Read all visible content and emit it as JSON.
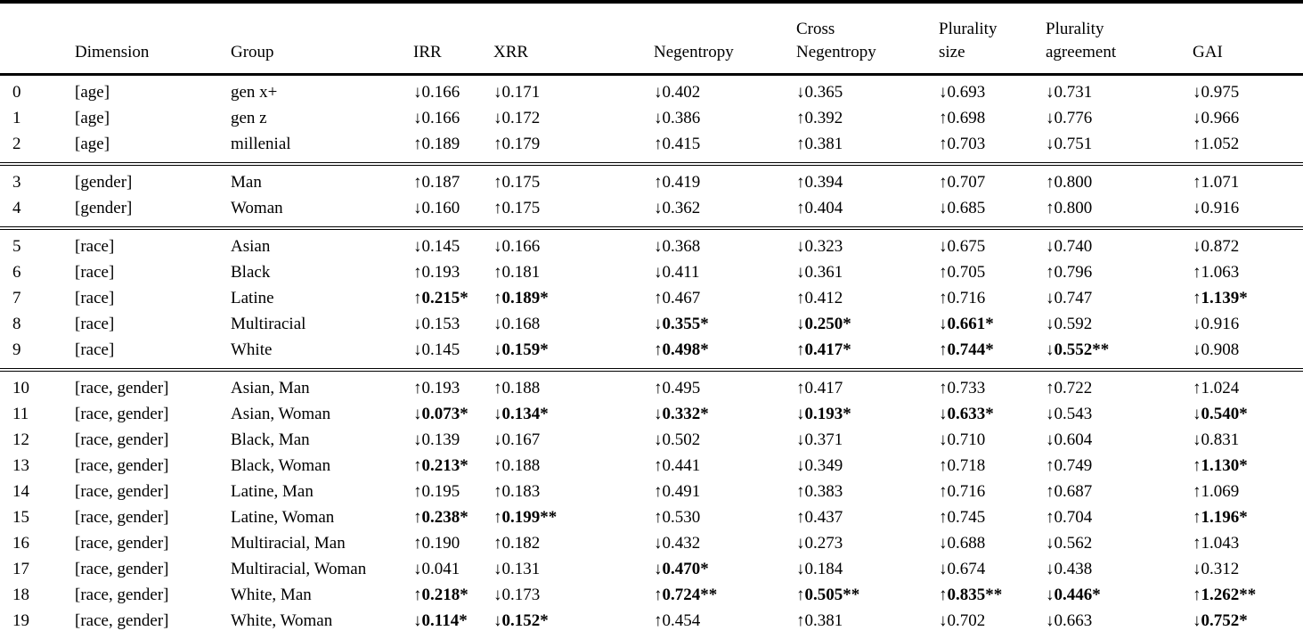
{
  "table": {
    "columns": [
      {
        "key": "index",
        "lines": [
          ""
        ]
      },
      {
        "key": "dimension",
        "lines": [
          "Dimension"
        ]
      },
      {
        "key": "group",
        "lines": [
          "Group"
        ]
      },
      {
        "key": "irr",
        "lines": [
          "IRR"
        ]
      },
      {
        "key": "xrr",
        "lines": [
          "XRR"
        ]
      },
      {
        "key": "negentropy",
        "lines": [
          "Negentropy"
        ]
      },
      {
        "key": "cross-negentropy",
        "lines": [
          "Cross",
          "Negentropy"
        ]
      },
      {
        "key": "plurality-size",
        "lines": [
          "Plurality",
          "size"
        ]
      },
      {
        "key": "plurality-agreement",
        "lines": [
          "Plurality",
          "agreement"
        ]
      },
      {
        "key": "gai",
        "lines": [
          "GAI"
        ]
      }
    ],
    "text_color": "#000000",
    "background_color": "#ffffff",
    "blocks": [
      {
        "rows": [
          {
            "idx": "0",
            "dimension": "[age]",
            "group": "gen x+",
            "metrics": [
              {
                "d": "↓",
                "v": "0.166"
              },
              {
                "d": "↓",
                "v": "0.171"
              },
              {
                "d": "↓",
                "v": "0.402"
              },
              {
                "d": "↓",
                "v": "0.365"
              },
              {
                "d": "↓",
                "v": "0.693"
              },
              {
                "d": "↓",
                "v": "0.731"
              },
              {
                "d": "↓",
                "v": "0.975"
              }
            ]
          },
          {
            "idx": "1",
            "dimension": "[age]",
            "group": "gen z",
            "metrics": [
              {
                "d": "↓",
                "v": "0.166"
              },
              {
                "d": "↓",
                "v": "0.172"
              },
              {
                "d": "↓",
                "v": "0.386"
              },
              {
                "d": "↑",
                "v": "0.392"
              },
              {
                "d": "↑",
                "v": "0.698"
              },
              {
                "d": "↓",
                "v": "0.776"
              },
              {
                "d": "↓",
                "v": "0.966"
              }
            ]
          },
          {
            "idx": "2",
            "dimension": "[age]",
            "group": "millenial",
            "metrics": [
              {
                "d": "↑",
                "v": "0.189"
              },
              {
                "d": "↑",
                "v": "0.179"
              },
              {
                "d": "↑",
                "v": "0.415"
              },
              {
                "d": "↑",
                "v": "0.381"
              },
              {
                "d": "↑",
                "v": "0.703"
              },
              {
                "d": "↓",
                "v": "0.751"
              },
              {
                "d": "↑",
                "v": "1.052"
              }
            ]
          }
        ]
      },
      {
        "rows": [
          {
            "idx": "3",
            "dimension": "[gender]",
            "group": "Man",
            "metrics": [
              {
                "d": "↑",
                "v": "0.187"
              },
              {
                "d": "↑",
                "v": "0.175"
              },
              {
                "d": "↑",
                "v": "0.419"
              },
              {
                "d": "↑",
                "v": "0.394"
              },
              {
                "d": "↑",
                "v": "0.707"
              },
              {
                "d": "↑",
                "v": "0.800"
              },
              {
                "d": "↑",
                "v": "1.071"
              }
            ]
          },
          {
            "idx": "4",
            "dimension": "[gender]",
            "group": "Woman",
            "metrics": [
              {
                "d": "↓",
                "v": "0.160"
              },
              {
                "d": "↑",
                "v": "0.175"
              },
              {
                "d": "↓",
                "v": "0.362"
              },
              {
                "d": "↑",
                "v": "0.404"
              },
              {
                "d": "↓",
                "v": "0.685"
              },
              {
                "d": "↑",
                "v": "0.800"
              },
              {
                "d": "↓",
                "v": "0.916"
              }
            ]
          }
        ]
      },
      {
        "rows": [
          {
            "idx": "5",
            "dimension": "[race]",
            "group": "Asian",
            "metrics": [
              {
                "d": "↓",
                "v": "0.145"
              },
              {
                "d": "↓",
                "v": "0.166"
              },
              {
                "d": "↓",
                "v": "0.368"
              },
              {
                "d": "↓",
                "v": "0.323"
              },
              {
                "d": "↓",
                "v": "0.675"
              },
              {
                "d": "↓",
                "v": "0.740"
              },
              {
                "d": "↓",
                "v": "0.872"
              }
            ]
          },
          {
            "idx": "6",
            "dimension": "[race]",
            "group": "Black",
            "metrics": [
              {
                "d": "↑",
                "v": "0.193"
              },
              {
                "d": "↑",
                "v": "0.181"
              },
              {
                "d": "↓",
                "v": "0.411"
              },
              {
                "d": "↓",
                "v": "0.361"
              },
              {
                "d": "↑",
                "v": "0.705"
              },
              {
                "d": "↑",
                "v": "0.796"
              },
              {
                "d": "↑",
                "v": "1.063"
              }
            ]
          },
          {
            "idx": "7",
            "dimension": "[race]",
            "group": "Latine",
            "metrics": [
              {
                "d": "↑",
                "v": "0.215*",
                "b": 1
              },
              {
                "d": "↑",
                "v": "0.189*",
                "b": 1
              },
              {
                "d": "↑",
                "v": "0.467"
              },
              {
                "d": "↑",
                "v": "0.412"
              },
              {
                "d": "↑",
                "v": "0.716"
              },
              {
                "d": "↓",
                "v": "0.747"
              },
              {
                "d": "↑",
                "v": "1.139*",
                "b": 1
              }
            ]
          },
          {
            "idx": "8",
            "dimension": "[race]",
            "group": "Multiracial",
            "metrics": [
              {
                "d": "↓",
                "v": "0.153"
              },
              {
                "d": "↓",
                "v": "0.168"
              },
              {
                "d": "↓",
                "v": "0.355*",
                "b": 1
              },
              {
                "d": "↓",
                "v": "0.250*",
                "b": 1
              },
              {
                "d": "↓",
                "v": "0.661*",
                "b": 1
              },
              {
                "d": "↓",
                "v": "0.592"
              },
              {
                "d": "↓",
                "v": "0.916"
              }
            ]
          },
          {
            "idx": "9",
            "dimension": "[race]",
            "group": "White",
            "metrics": [
              {
                "d": "↓",
                "v": "0.145"
              },
              {
                "d": "↓",
                "v": "0.159*",
                "b": 1
              },
              {
                "d": "↑",
                "v": "0.498*",
                "b": 1
              },
              {
                "d": "↑",
                "v": "0.417*",
                "b": 1
              },
              {
                "d": "↑",
                "v": "0.744*",
                "b": 1
              },
              {
                "d": "↓",
                "v": "0.552**",
                "b": 1
              },
              {
                "d": "↓",
                "v": "0.908"
              }
            ]
          }
        ]
      },
      {
        "rows": [
          {
            "idx": "10",
            "dimension": "[race, gender]",
            "group": "Asian, Man",
            "metrics": [
              {
                "d": "↑",
                "v": "0.193"
              },
              {
                "d": "↑",
                "v": "0.188"
              },
              {
                "d": "↑",
                "v": "0.495"
              },
              {
                "d": "↑",
                "v": "0.417"
              },
              {
                "d": "↑",
                "v": "0.733"
              },
              {
                "d": "↑",
                "v": "0.722"
              },
              {
                "d": "↑",
                "v": "1.024"
              }
            ]
          },
          {
            "idx": "11",
            "dimension": "[race, gender]",
            "group": "Asian, Woman",
            "metrics": [
              {
                "d": "↓",
                "v": "0.073*",
                "b": 1
              },
              {
                "d": "↓",
                "v": "0.134*",
                "b": 1
              },
              {
                "d": "↓",
                "v": "0.332*",
                "b": 1
              },
              {
                "d": "↓",
                "v": "0.193*",
                "b": 1
              },
              {
                "d": "↓",
                "v": "0.633*",
                "b": 1
              },
              {
                "d": "↓",
                "v": "0.543"
              },
              {
                "d": "↓",
                "v": "0.540*",
                "b": 1
              }
            ]
          },
          {
            "idx": "12",
            "dimension": "[race, gender]",
            "group": "Black, Man",
            "metrics": [
              {
                "d": "↓",
                "v": "0.139"
              },
              {
                "d": "↓",
                "v": "0.167"
              },
              {
                "d": "↓",
                "v": "0.502"
              },
              {
                "d": "↓",
                "v": "0.371"
              },
              {
                "d": "↓",
                "v": "0.710"
              },
              {
                "d": "↓",
                "v": "0.604"
              },
              {
                "d": "↓",
                "v": "0.831"
              }
            ]
          },
          {
            "idx": "13",
            "dimension": "[race, gender]",
            "group": "Black, Woman",
            "metrics": [
              {
                "d": "↑",
                "v": "0.213*",
                "b": 1
              },
              {
                "d": "↑",
                "v": "0.188"
              },
              {
                "d": "↑",
                "v": "0.441"
              },
              {
                "d": "↓",
                "v": "0.349"
              },
              {
                "d": "↑",
                "v": "0.718"
              },
              {
                "d": "↑",
                "v": "0.749"
              },
              {
                "d": "↑",
                "v": "1.130*",
                "b": 1
              }
            ]
          },
          {
            "idx": "14",
            "dimension": "[race, gender]",
            "group": "Latine, Man",
            "metrics": [
              {
                "d": "↑",
                "v": "0.195"
              },
              {
                "d": "↑",
                "v": "0.183"
              },
              {
                "d": "↑",
                "v": "0.491"
              },
              {
                "d": "↑",
                "v": "0.383"
              },
              {
                "d": "↑",
                "v": "0.716"
              },
              {
                "d": "↑",
                "v": "0.687"
              },
              {
                "d": "↑",
                "v": "1.069"
              }
            ]
          },
          {
            "idx": "15",
            "dimension": "[race, gender]",
            "group": "Latine, Woman",
            "metrics": [
              {
                "d": "↑",
                "v": "0.238*",
                "b": 1
              },
              {
                "d": "↑",
                "v": "0.199**",
                "b": 1
              },
              {
                "d": "↑",
                "v": "0.530"
              },
              {
                "d": "↑",
                "v": "0.437"
              },
              {
                "d": "↑",
                "v": "0.745"
              },
              {
                "d": "↑",
                "v": "0.704"
              },
              {
                "d": "↑",
                "v": "1.196*",
                "b": 1
              }
            ]
          },
          {
            "idx": "16",
            "dimension": "[race, gender]",
            "group": "Multiracial, Man",
            "metrics": [
              {
                "d": "↑",
                "v": "0.190"
              },
              {
                "d": "↑",
                "v": "0.182"
              },
              {
                "d": "↓",
                "v": "0.432"
              },
              {
                "d": "↓",
                "v": "0.273"
              },
              {
                "d": "↓",
                "v": "0.688"
              },
              {
                "d": "↓",
                "v": "0.562"
              },
              {
                "d": "↑",
                "v": "1.043"
              }
            ]
          },
          {
            "idx": "17",
            "dimension": "[race, gender]",
            "group": "Multiracial, Woman",
            "metrics": [
              {
                "d": "↓",
                "v": "0.041"
              },
              {
                "d": "↓",
                "v": "0.131"
              },
              {
                "d": "↓",
                "v": "0.470*",
                "b": 1
              },
              {
                "d": "↓",
                "v": "0.184"
              },
              {
                "d": "↓",
                "v": "0.674"
              },
              {
                "d": "↓",
                "v": "0.438"
              },
              {
                "d": "↓",
                "v": "0.312"
              }
            ]
          },
          {
            "idx": "18",
            "dimension": "[race, gender]",
            "group": "White, Man",
            "metrics": [
              {
                "d": "↑",
                "v": "0.218*",
                "b": 1
              },
              {
                "d": "↓",
                "v": "0.173"
              },
              {
                "d": "↑",
                "v": "0.724**",
                "b": 1
              },
              {
                "d": "↑",
                "v": "0.505**",
                "b": 1
              },
              {
                "d": "↑",
                "v": "0.835**",
                "b": 1
              },
              {
                "d": "↓",
                "v": "0.446*",
                "b": 1
              },
              {
                "d": "↑",
                "v": "1.262**",
                "b": 1
              }
            ]
          },
          {
            "idx": "19",
            "dimension": "[race, gender]",
            "group": "White, Woman",
            "metrics": [
              {
                "d": "↓",
                "v": "0.114*",
                "b": 1
              },
              {
                "d": "↓",
                "v": "0.152*",
                "b": 1
              },
              {
                "d": "↑",
                "v": "0.454"
              },
              {
                "d": "↑",
                "v": "0.381"
              },
              {
                "d": "↓",
                "v": "0.702"
              },
              {
                "d": "↓",
                "v": "0.663"
              },
              {
                "d": "↓",
                "v": "0.752*",
                "b": 1
              }
            ]
          }
        ]
      }
    ]
  }
}
